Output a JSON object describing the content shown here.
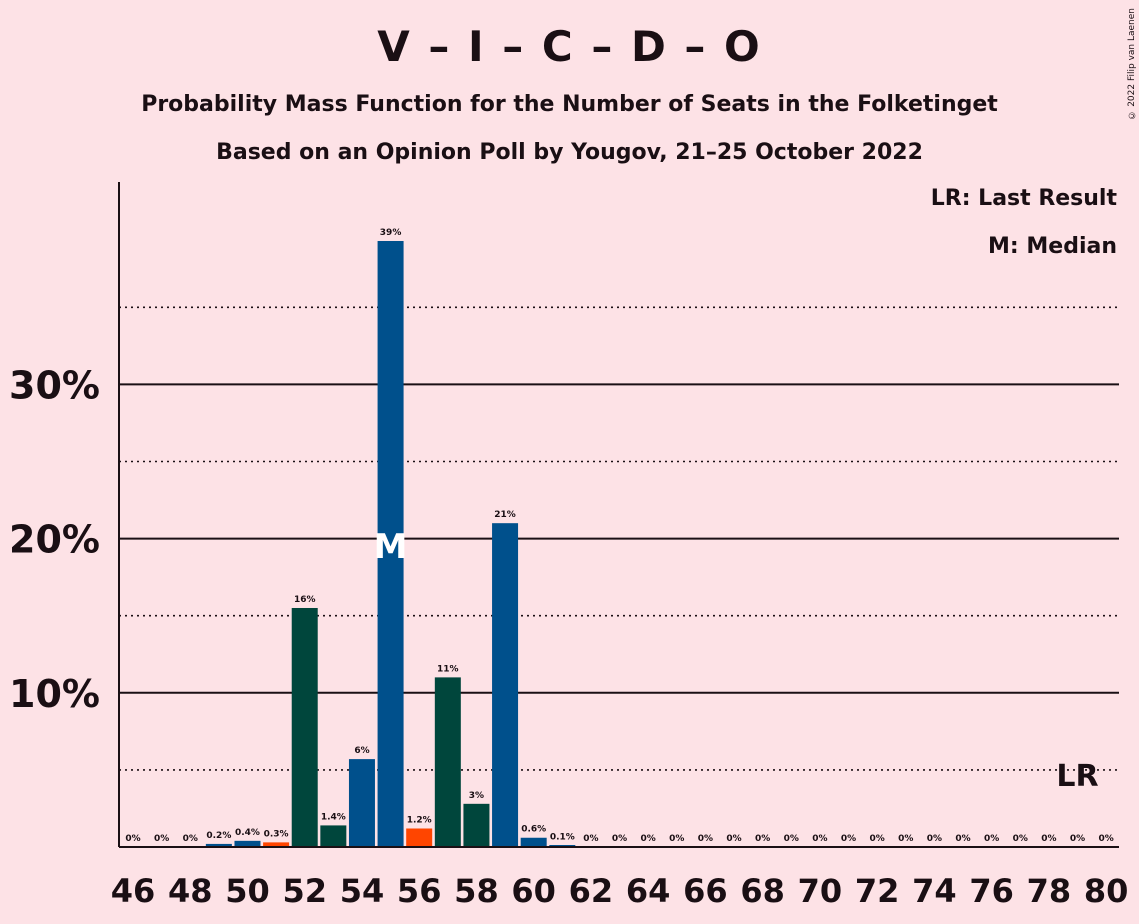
{
  "header": {
    "title": "V – I – C – D – O",
    "subtitle1": "Probability Mass Function for the Number of Seats in the Folketinget",
    "subtitle2": "Based on an Opinion Poll by Yougov, 21–25 October 2022"
  },
  "legend": {
    "last_result": "LR: Last Result",
    "median": "M: Median"
  },
  "copyright": "© 2022 Filip van Laenen",
  "colors": {
    "background": "#fde2e6",
    "blue": "#00508c",
    "dark_green": "#00463c",
    "orange": "#ff4500"
  },
  "chart_data": {
    "type": "bar",
    "xlabel": "",
    "ylabel": "",
    "ylim": [
      0,
      43
    ],
    "y_ticks": [
      {
        "value": 10,
        "label": "10%"
      },
      {
        "value": 20,
        "label": "20%"
      },
      {
        "value": 30,
        "label": "30%"
      }
    ],
    "minor_gridlines": [
      5,
      15,
      25,
      35
    ],
    "x": [
      46,
      47,
      48,
      49,
      50,
      51,
      52,
      53,
      54,
      55,
      56,
      57,
      58,
      59,
      60,
      61,
      62,
      63,
      64,
      65,
      66,
      67,
      68,
      69,
      70,
      71,
      72,
      73,
      74,
      75,
      76,
      77,
      78,
      79,
      80
    ],
    "x_tick_labels": [
      46,
      48,
      50,
      52,
      54,
      56,
      58,
      60,
      62,
      64,
      66,
      68,
      70,
      72,
      74,
      76,
      78,
      80
    ],
    "values": [
      0,
      0,
      0,
      0.2,
      0.4,
      0.3,
      15.5,
      1.4,
      5.7,
      39.3,
      1.2,
      11,
      2.8,
      21,
      0.6,
      0.1,
      0,
      0,
      0,
      0,
      0,
      0,
      0,
      0,
      0,
      0,
      0,
      0,
      0,
      0,
      0,
      0,
      0,
      0,
      0
    ],
    "labels": [
      "0%",
      "0%",
      "0%",
      "0.2%",
      "0.4%",
      "0.3%",
      "16%",
      "1.4%",
      "6%",
      "39%",
      "1.2%",
      "11%",
      "3%",
      "21%",
      "0.6%",
      "0.1%",
      "0%",
      "0%",
      "0%",
      "0%",
      "0%",
      "0%",
      "0%",
      "0%",
      "0%",
      "0%",
      "0%",
      "0%",
      "0%",
      "0%",
      "0%",
      "0%",
      "0%",
      "0%",
      "0%"
    ],
    "bar_colors": [
      "blue",
      "blue",
      "blue",
      "blue",
      "blue",
      "orange",
      "dark_green",
      "dark_green",
      "blue",
      "blue",
      "orange",
      "dark_green",
      "dark_green",
      "blue",
      "blue",
      "blue",
      "blue",
      "blue",
      "blue",
      "blue",
      "blue",
      "blue",
      "blue",
      "blue",
      "blue",
      "blue",
      "blue",
      "blue",
      "blue",
      "blue",
      "blue",
      "blue",
      "blue",
      "blue",
      "blue"
    ],
    "median_seat": 55,
    "median_marker": "M",
    "last_result_seat": 79,
    "last_result_marker": "LR"
  }
}
